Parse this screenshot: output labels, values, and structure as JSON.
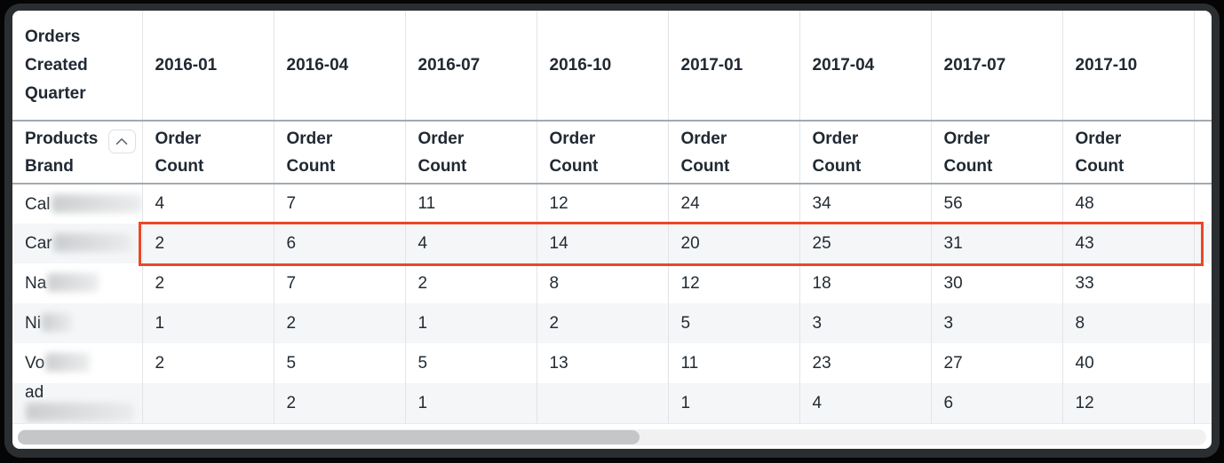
{
  "table": {
    "corner_header": "Orders Created Quarter",
    "row_dimension": "Products Brand",
    "metric_label": "Order Count",
    "quarters": [
      "2016-01",
      "2016-04",
      "2016-07",
      "2016-10",
      "2017-01",
      "2017-04",
      "2017-07",
      "2017-10"
    ],
    "rows": [
      {
        "brand_prefix": "Cal",
        "redacted": true,
        "redacted_width": 102,
        "values": [
          "4",
          "7",
          "11",
          "12",
          "24",
          "34",
          "56",
          "48"
        ],
        "highlighted": false
      },
      {
        "brand_prefix": "Car",
        "redacted": true,
        "redacted_width": 88,
        "values": [
          "2",
          "6",
          "4",
          "14",
          "20",
          "25",
          "31",
          "43"
        ],
        "highlighted": true
      },
      {
        "brand_prefix": "Na",
        "redacted": true,
        "redacted_width": 58,
        "values": [
          "2",
          "7",
          "2",
          "8",
          "12",
          "18",
          "30",
          "33"
        ],
        "highlighted": false
      },
      {
        "brand_prefix": "Ni",
        "redacted": true,
        "redacted_width": 34,
        "values": [
          "1",
          "2",
          "1",
          "2",
          "5",
          "3",
          "3",
          "8"
        ],
        "highlighted": false
      },
      {
        "brand_prefix": "Vo",
        "redacted": true,
        "redacted_width": 50,
        "values": [
          "2",
          "5",
          "5",
          "13",
          "11",
          "23",
          "27",
          "40"
        ],
        "highlighted": false
      },
      {
        "brand_prefix": "ad",
        "redacted": true,
        "redacted_width": 122,
        "values": [
          "",
          "2",
          "1",
          "",
          "1",
          "4",
          "6",
          "12"
        ],
        "highlighted": false
      }
    ],
    "icons": {
      "sort": "chevron-up-icon"
    },
    "colors": {
      "highlight_border": "#ea4726",
      "header_rule": "#a2a9b0",
      "row_stripe": "#f5f6f8",
      "text": "#222b33"
    }
  },
  "chart_data": {
    "type": "table",
    "title": "Order Count by Products Brand and Orders Created Quarter",
    "categories": [
      "2016-01",
      "2016-04",
      "2016-07",
      "2016-10",
      "2017-01",
      "2017-04",
      "2017-07",
      "2017-10"
    ],
    "series": [
      {
        "name": "Cal…",
        "values": [
          4,
          7,
          11,
          12,
          24,
          34,
          56,
          48
        ]
      },
      {
        "name": "Car…",
        "values": [
          2,
          6,
          4,
          14,
          20,
          25,
          31,
          43
        ]
      },
      {
        "name": "Na…",
        "values": [
          2,
          7,
          2,
          8,
          12,
          18,
          30,
          33
        ]
      },
      {
        "name": "Ni…",
        "values": [
          1,
          2,
          1,
          2,
          5,
          3,
          3,
          8
        ]
      },
      {
        "name": "Vo…",
        "values": [
          2,
          5,
          5,
          13,
          11,
          23,
          27,
          40
        ]
      },
      {
        "name": "ad…",
        "values": [
          null,
          2,
          1,
          null,
          1,
          4,
          6,
          12
        ]
      }
    ],
    "highlighted_row": "Car…"
  }
}
